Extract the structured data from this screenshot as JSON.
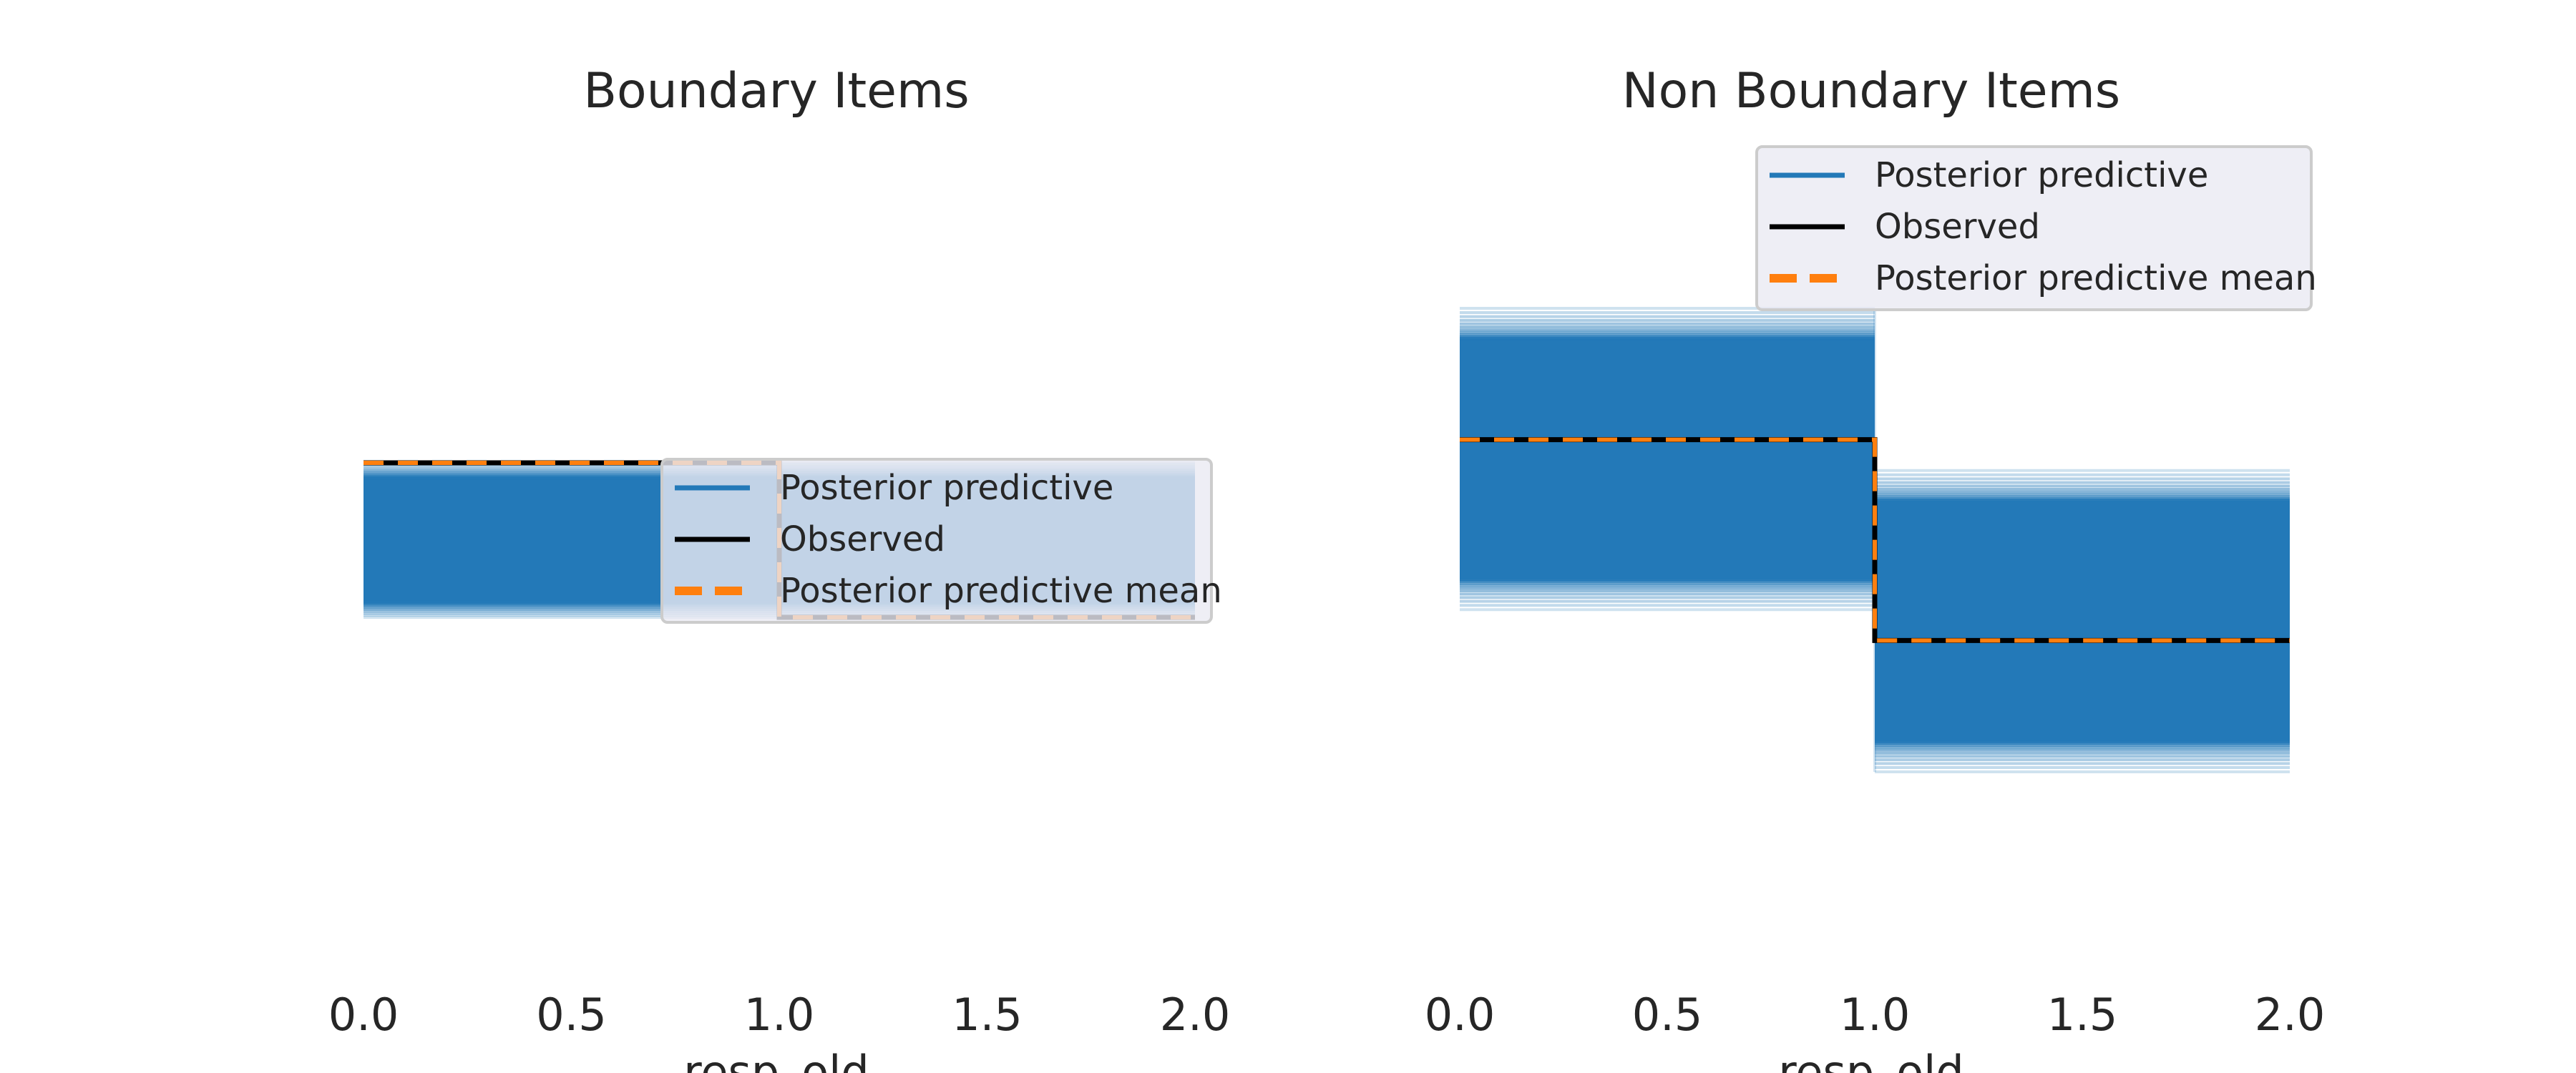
{
  "colors": {
    "posterior_predictive": "#2379b8",
    "observed": "#000000",
    "posterior_predictive_mean": "#ff7f0e",
    "legend_bg": "#eaeaf2",
    "legend_border": "#cccccc",
    "text": "#262626"
  },
  "chart_data": [
    {
      "type": "line",
      "title": "Boundary Items",
      "xlabel": "resp_old",
      "xlim": [
        0.0,
        2.0
      ],
      "xticks": [
        "0.0",
        "0.5",
        "1.0",
        "1.5",
        "2.0"
      ],
      "yaxis_visible": false,
      "ylim": [
        0.0,
        1.0
      ],
      "legend": {
        "placement": "center-right",
        "entries": [
          "Posterior predictive",
          "Observed",
          "Posterior predictive mean"
        ]
      },
      "series": [
        {
          "name": "Posterior predictive",
          "style": "band of translucent step lines",
          "steps": [
            {
              "x": [
                0.0,
                1.0
              ],
              "y_min": 0.4,
              "y_max": 0.6
            },
            {
              "x": [
                1.0,
                2.0
              ],
              "y_min": 0.4,
              "y_max": 0.6
            }
          ]
        },
        {
          "name": "Observed",
          "x": [
            0.0,
            1.0,
            1.0,
            2.0
          ],
          "y": [
            0.6,
            0.6,
            0.4,
            0.4
          ]
        },
        {
          "name": "Posterior predictive mean",
          "x": [
            0.0,
            1.0,
            1.0,
            2.0
          ],
          "y": [
            0.6,
            0.6,
            0.4,
            0.4
          ]
        }
      ]
    },
    {
      "type": "line",
      "title": "Non Boundary Items",
      "xlabel": "resp_old",
      "xlim": [
        0.0,
        2.0
      ],
      "xticks": [
        "0.0",
        "0.5",
        "1.0",
        "1.5",
        "2.0"
      ],
      "yaxis_visible": false,
      "ylim": [
        0.0,
        1.0
      ],
      "legend": {
        "placement": "upper-right",
        "entries": [
          "Posterior predictive",
          "Observed",
          "Posterior predictive mean"
        ]
      },
      "series": [
        {
          "name": "Posterior predictive",
          "style": "band of translucent step lines",
          "steps": [
            {
              "x": [
                0.0,
                1.0
              ],
              "y_min": 0.41,
              "y_max": 0.8
            },
            {
              "x": [
                1.0,
                2.0
              ],
              "y_min": 0.2,
              "y_max": 0.59
            }
          ]
        },
        {
          "name": "Observed",
          "x": [
            0.0,
            1.0,
            1.0,
            2.0
          ],
          "y": [
            0.63,
            0.63,
            0.37,
            0.37
          ]
        },
        {
          "name": "Posterior predictive mean",
          "x": [
            0.0,
            1.0,
            1.0,
            2.0
          ],
          "y": [
            0.63,
            0.63,
            0.37,
            0.37
          ]
        }
      ]
    }
  ]
}
